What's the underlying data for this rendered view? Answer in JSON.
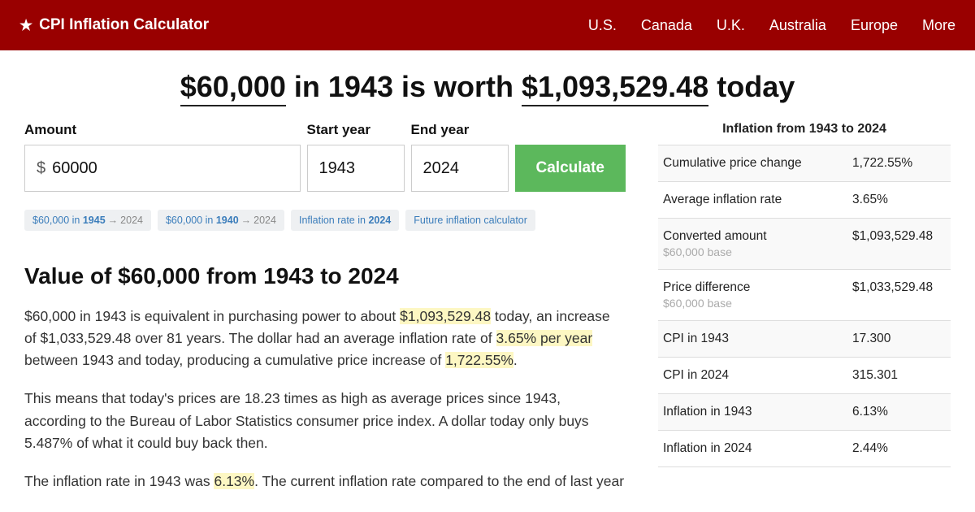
{
  "nav": {
    "brand": "CPI Inflation Calculator",
    "links": [
      "U.S.",
      "Canada",
      "U.K.",
      "Australia",
      "Europe",
      "More"
    ]
  },
  "hero": {
    "amount": "$60,000",
    "mid1": " in 1943 is worth ",
    "result": "$1,093,529.48",
    "tail": " today"
  },
  "form": {
    "amount_label": "Amount",
    "amount_prefix": "$",
    "amount_value": "60000",
    "start_label": "Start year",
    "start_value": "1943",
    "end_label": "End year",
    "end_value": "2024",
    "calc_label": "Calculate"
  },
  "chips": [
    {
      "pre": "$60,000 in ",
      "b": "1945",
      "post": "2024"
    },
    {
      "pre": "$60,000 in ",
      "b": "1940",
      "post": "2024"
    },
    {
      "pre": "Inflation rate in ",
      "b": "2024",
      "post": ""
    },
    {
      "pre": "Future inflation calculator",
      "b": "",
      "post": ""
    }
  ],
  "section_title": "Value of $60,000 from 1943 to 2024",
  "para1": {
    "a": "$60,000 in 1943 is equivalent in purchasing power to about ",
    "h1": "$1,093,529.48",
    "b": " today, an increase of $1,033,529.48 over 81 years. The dollar had an average inflation rate of ",
    "h2": "3.65% per year",
    "c": " between 1943 and today, producing a cumulative price increase of ",
    "h3": "1,722.55%",
    "d": "."
  },
  "para2": "This means that today's prices are 18.23 times as high as average prices since 1943, according to the Bureau of Labor Statistics consumer price index. A dollar today only buys 5.487% of what it could buy back then.",
  "para3": {
    "a": "The inflation rate in 1943 was ",
    "h1": "6.13%",
    "b": ". The current inflation rate compared to the end of last year"
  },
  "side": {
    "title": "Inflation from 1943 to 2024",
    "rows": [
      {
        "label": "Cumulative price change",
        "sub": "",
        "val": "1,722.55%"
      },
      {
        "label": "Average inflation rate",
        "sub": "",
        "val": "3.65%"
      },
      {
        "label": "Converted amount",
        "sub": "$60,000 base",
        "val": "$1,093,529.48"
      },
      {
        "label": "Price difference",
        "sub": "$60,000 base",
        "val": "$1,033,529.48"
      },
      {
        "label": "CPI in 1943",
        "sub": "",
        "val": "17.300"
      },
      {
        "label": "CPI in 2024",
        "sub": "",
        "val": "315.301"
      },
      {
        "label": "Inflation in 1943",
        "sub": "",
        "val": "6.13%"
      },
      {
        "label": "Inflation in 2024",
        "sub": "",
        "val": "2.44%"
      }
    ]
  }
}
